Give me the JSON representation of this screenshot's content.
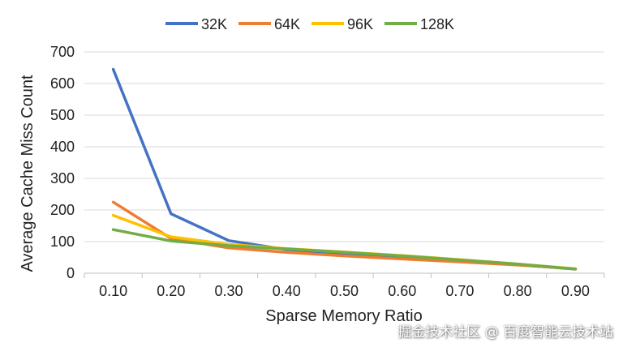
{
  "chart_data": {
    "type": "line",
    "title": "",
    "xlabel": "Sparse Memory Ratio",
    "ylabel": "Average Cache Miss Count",
    "categories": [
      "0.10",
      "0.20",
      "0.30",
      "0.40",
      "0.50",
      "0.60",
      "0.70",
      "0.80",
      "0.90"
    ],
    "ylim": [
      0,
      700
    ],
    "yticks": [
      "0",
      "100",
      "200",
      "300",
      "400",
      "500",
      "600",
      "700"
    ],
    "grid": true,
    "legend_position": "top",
    "series": [
      {
        "name": "32K",
        "color": "#4472C4",
        "values": [
          645,
          188,
          103,
          75,
          62,
          50,
          38,
          27,
          13
        ]
      },
      {
        "name": "64K",
        "color": "#ED7D31",
        "values": [
          225,
          110,
          80,
          66,
          55,
          45,
          36,
          26,
          14
        ]
      },
      {
        "name": "96K",
        "color": "#FFC000",
        "values": [
          183,
          115,
          91,
          78,
          67,
          56,
          43,
          29,
          14
        ]
      },
      {
        "name": "128K",
        "color": "#70AD47",
        "values": [
          138,
          102,
          87,
          77,
          66,
          55,
          42,
          29,
          13
        ]
      }
    ]
  },
  "watermark": "掘金技术社区 @ 百度智能云技术站"
}
